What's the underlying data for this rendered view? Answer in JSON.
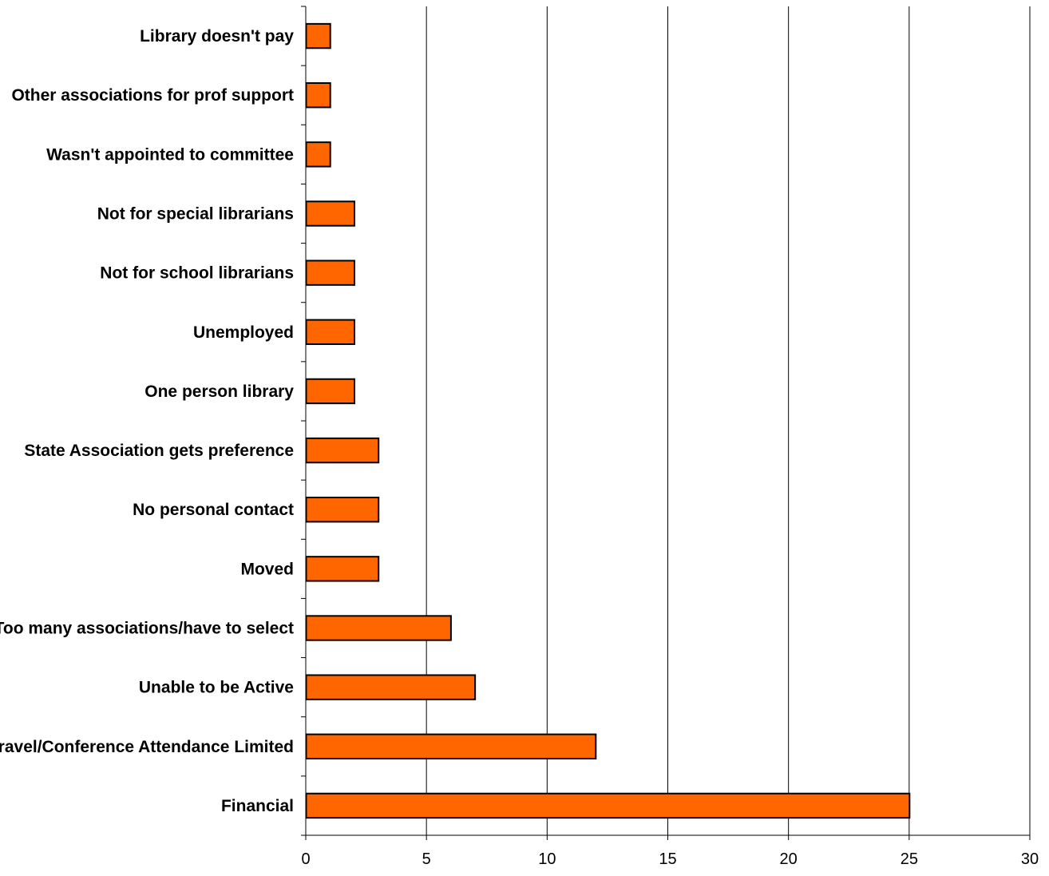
{
  "chart_data": {
    "type": "bar",
    "orientation": "horizontal",
    "categories": [
      "Library doesn't pay",
      "Other associations for prof support",
      "Wasn't appointed to committee",
      "Not for special librarians",
      "Not for school librarians",
      "Unemployed",
      "One person library",
      "State Association gets preference",
      "No personal contact",
      "Moved",
      "Too many associations/have to select",
      "Unable to be Active",
      "Travel/Conference Attendance Limited",
      "Financial"
    ],
    "values": [
      1,
      1,
      1,
      2,
      2,
      2,
      2,
      3,
      3,
      3,
      6,
      7,
      12,
      25
    ],
    "xlim": [
      0,
      30
    ],
    "xticks": [
      "0",
      "5",
      "10",
      "15",
      "20",
      "25",
      "30"
    ],
    "grid": "vertical",
    "legend": "none",
    "colors": {
      "bar": "#FF6600",
      "bar_edge": "#000000",
      "grid": "#000000"
    }
  }
}
